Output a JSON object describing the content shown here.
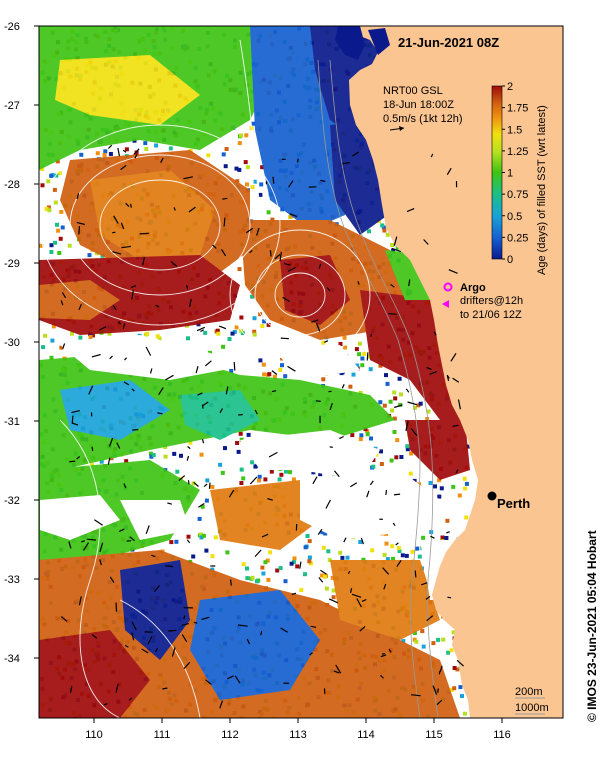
{
  "map": {
    "date_title": "21-Jun-2021 08Z",
    "lon_ticks": [
      "110",
      "111",
      "112",
      "113",
      "114",
      "115",
      "116"
    ],
    "lat_ticks": [
      "-26",
      "-27",
      "-28",
      "-29",
      "-30",
      "-31",
      "-32",
      "-33",
      "-34"
    ],
    "land_color": "#fbc592",
    "sea_no_data_color": "#ffffff",
    "city": {
      "name": "Perth",
      "lon": 115.86,
      "lat": -31.95
    },
    "current_legend": {
      "line1": "NRT00 GSL",
      "line2": "18-Jun 18:00Z",
      "line3": "0.5m/s (1kt 12h)"
    },
    "argo_legend": {
      "argo_label": "Argo",
      "drifters_line1": "drifters@12h",
      "drifters_line2": "to 21/06 12Z",
      "argo_color": "#ff00ff",
      "drifter_color": "#ff00ff"
    },
    "depth_legend": {
      "line1": "200m",
      "line2": "1000m"
    },
    "colorbar": {
      "title": "Age (days) of filled SST (wrt latest)",
      "ticks": [
        "0",
        "0.25",
        "0.5",
        "0.75",
        "1",
        "1.25",
        "1.5",
        "1.75",
        "2"
      ],
      "colors": [
        "#0a1a8c",
        "#1560d0",
        "#1aa3d8",
        "#1bbf8a",
        "#3ec414",
        "#b8e020",
        "#f0e010",
        "#f09010",
        "#d06010",
        "#a00a0a"
      ]
    },
    "credit": "© IMOS 23-Jun-2021 05:04 Hobart"
  }
}
